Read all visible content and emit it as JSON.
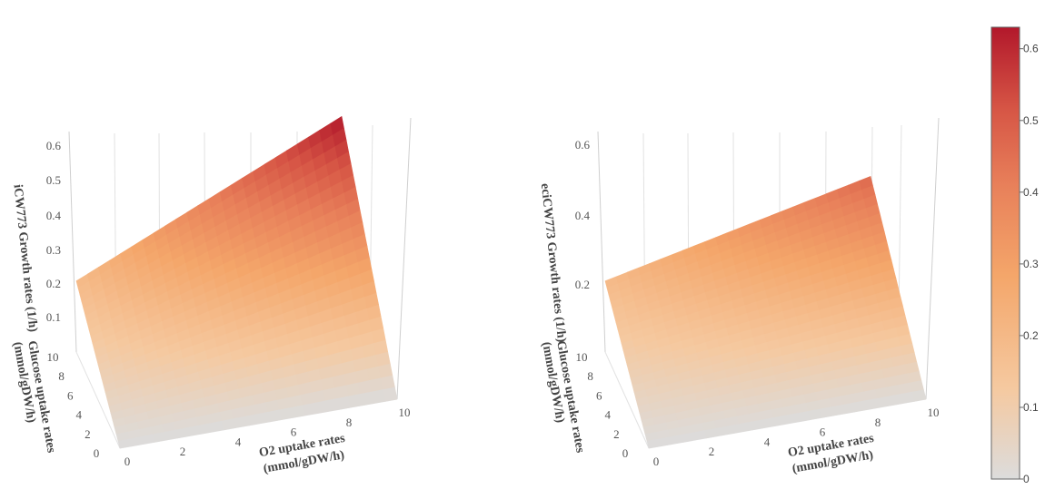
{
  "chart_data": [
    {
      "type": "surface",
      "xlabel_line1": "O2 uptake rates",
      "xlabel_line2": "(mmol/gDW/h)",
      "ylabel_line1": "Glucose uptake rates",
      "ylabel_line2": "(mmol/gDW/h)",
      "zlabel": "iCW773 Growth rates (1/h)",
      "x_ticks": [
        "0",
        "2",
        "4",
        "6",
        "8",
        "10"
      ],
      "y_ticks": [
        "0",
        "2",
        "4",
        "6",
        "8",
        "10"
      ],
      "z_ticks": [
        "0.1",
        "0.2",
        "0.3",
        "0.4",
        "0.5",
        "0.6"
      ],
      "xlim": [
        0,
        10
      ],
      "ylim": [
        0,
        10
      ],
      "zlim": [
        0,
        0.65
      ],
      "corner_values": {
        "x0_y0": 0.0,
        "x10_y0": 0.0,
        "x0_y10": 0.19,
        "x10_y10": 0.63
      },
      "max_growth_rate": 0.63
    },
    {
      "type": "surface",
      "xlabel_line1": "O2 uptake rates",
      "xlabel_line2": "(mmol/gDW/h)",
      "ylabel_line1": "Glucose uptake rates",
      "ylabel_line2": "(mmol/gDW/h)",
      "zlabel": "eciCW773 Growth rates (1/h)",
      "x_ticks": [
        "0",
        "2",
        "4",
        "6",
        "8",
        "10"
      ],
      "y_ticks": [
        "0",
        "2",
        "4",
        "6",
        "8",
        "10"
      ],
      "z_ticks": [
        "0.2",
        "0.4",
        "0.6"
      ],
      "xlim": [
        0,
        10
      ],
      "ylim": [
        0,
        10
      ],
      "zlim": [
        0,
        0.65
      ],
      "corner_values": {
        "x0_y0": 0.0,
        "x10_y0": 0.0,
        "x0_y10": 0.19,
        "x10_y10": 0.47
      },
      "max_growth_rate": 0.48
    }
  ],
  "colorbar": {
    "ticks": [
      "0",
      "0.1",
      "0.2",
      "0.3",
      "0.4",
      "0.5",
      "0.6"
    ],
    "range": [
      0,
      0.63
    ],
    "colors": [
      "#dcdcdc",
      "#f5c9a0",
      "#f4a66a",
      "#e8805a",
      "#d65545",
      "#b2182b"
    ]
  }
}
